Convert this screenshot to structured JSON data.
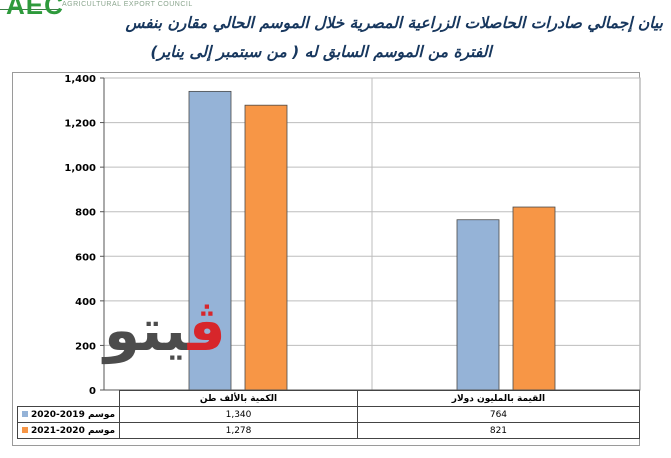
{
  "header": {
    "logo_text": "AEC",
    "logo_subtitle": "AGRICULTURAL EXPORT COUNCIL",
    "title_line1": "بيان إجمالي صادرات الحاصلات الزراعية المصرية خلال الموسم الحالي مقارن بنفس",
    "title_line2": "الفترة من الموسم السابق له ( من سبتمبر إلى يناير)"
  },
  "watermark": {
    "part1": "ڤ",
    "part2": "يتو"
  },
  "chart_data": {
    "type": "bar",
    "categories": [
      "الكمية بالألف طن",
      "القيمة بالمليون دولار"
    ],
    "series": [
      {
        "name": "موسم 2020-2019",
        "values": [
          1340,
          764
        ],
        "color": "#95b3d7"
      },
      {
        "name": "موسم 2021-2020",
        "values": [
          1278,
          821
        ],
        "color": "#f79646"
      }
    ],
    "ylim": [
      0,
      1400
    ],
    "yticks": [
      0,
      200,
      400,
      600,
      800,
      1000,
      1200,
      1400
    ],
    "ytick_labels": [
      "0",
      "200",
      "400",
      "600",
      "800",
      "1,000",
      "1,200",
      "1,400"
    ],
    "grid": true,
    "legend": "data-table-below",
    "table": {
      "rows": [
        {
          "label": "2020-2019 موسم",
          "cells": [
            "1,340",
            "764"
          ]
        },
        {
          "label": "2021-2020 موسم",
          "cells": [
            "1,278",
            "821"
          ]
        }
      ]
    }
  }
}
